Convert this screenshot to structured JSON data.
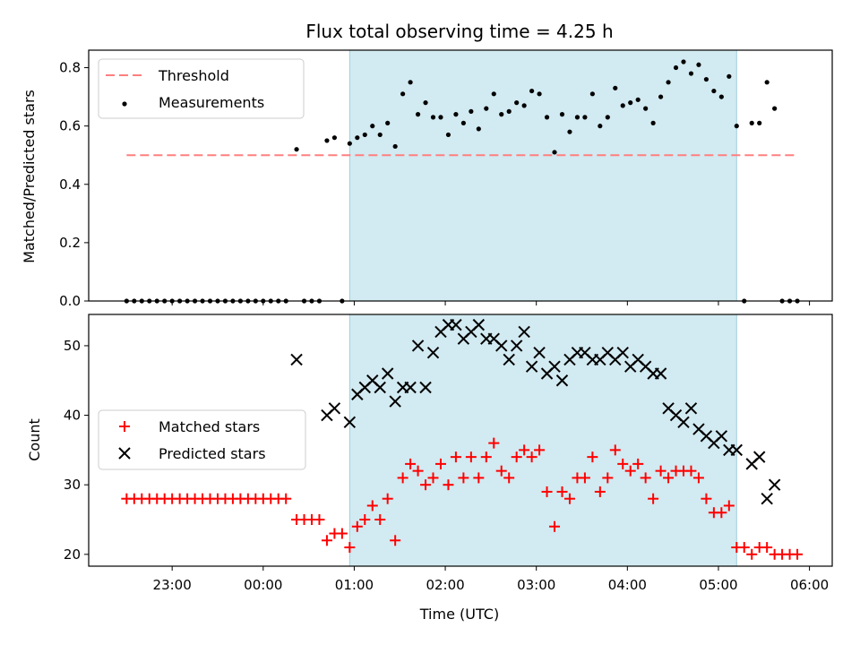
{
  "chart_data": [
    {
      "type": "scatter",
      "title": "Flux total observing time = 4.25 h",
      "xlabel": "",
      "ylabel": "Matched/Predicted stars",
      "ylim": [
        0,
        0.86
      ],
      "yticks": [
        "0.0",
        "0.2",
        "0.4",
        "0.6",
        "0.8"
      ],
      "shaded_span": {
        "start": "00:57",
        "end": "05:12"
      },
      "threshold": {
        "name": "Threshold",
        "value": 0.5,
        "x_start": "22:30",
        "x_end": "05:50"
      },
      "series": [
        {
          "name": "Measurements",
          "points": [
            [
              "22:30",
              0
            ],
            [
              "22:35",
              0
            ],
            [
              "22:40",
              0
            ],
            [
              "22:45",
              0
            ],
            [
              "22:50",
              0
            ],
            [
              "22:55",
              0
            ],
            [
              "23:00",
              0
            ],
            [
              "23:05",
              0
            ],
            [
              "23:10",
              0
            ],
            [
              "23:15",
              0
            ],
            [
              "23:20",
              0
            ],
            [
              "23:25",
              0
            ],
            [
              "23:30",
              0
            ],
            [
              "23:35",
              0
            ],
            [
              "23:40",
              0
            ],
            [
              "23:45",
              0
            ],
            [
              "23:50",
              0
            ],
            [
              "23:55",
              0
            ],
            [
              "00:00",
              0
            ],
            [
              "00:05",
              0
            ],
            [
              "00:10",
              0
            ],
            [
              "00:15",
              0
            ],
            [
              "00:22",
              0.52
            ],
            [
              "00:27",
              0
            ],
            [
              "00:32",
              0
            ],
            [
              "00:37",
              0
            ],
            [
              "00:42",
              0.55
            ],
            [
              "00:47",
              0.56
            ],
            [
              "00:52",
              0
            ],
            [
              "00:57",
              0.54
            ],
            [
              "01:02",
              0.56
            ],
            [
              "01:07",
              0.57
            ],
            [
              "01:12",
              0.6
            ],
            [
              "01:17",
              0.57
            ],
            [
              "01:22",
              0.61
            ],
            [
              "01:27",
              0.53
            ],
            [
              "01:32",
              0.71
            ],
            [
              "01:37",
              0.75
            ],
            [
              "01:42",
              0.64
            ],
            [
              "01:47",
              0.68
            ],
            [
              "01:52",
              0.63
            ],
            [
              "01:57",
              0.63
            ],
            [
              "02:02",
              0.57
            ],
            [
              "02:07",
              0.64
            ],
            [
              "02:12",
              0.61
            ],
            [
              "02:17",
              0.65
            ],
            [
              "02:22",
              0.59
            ],
            [
              "02:27",
              0.66
            ],
            [
              "02:32",
              0.71
            ],
            [
              "02:37",
              0.64
            ],
            [
              "02:42",
              0.65
            ],
            [
              "02:47",
              0.68
            ],
            [
              "02:52",
              0.67
            ],
            [
              "02:57",
              0.72
            ],
            [
              "03:02",
              0.71
            ],
            [
              "03:07",
              0.63
            ],
            [
              "03:12",
              0.51
            ],
            [
              "03:17",
              0.64
            ],
            [
              "03:22",
              0.58
            ],
            [
              "03:27",
              0.63
            ],
            [
              "03:32",
              0.63
            ],
            [
              "03:37",
              0.71
            ],
            [
              "03:42",
              0.6
            ],
            [
              "03:47",
              0.63
            ],
            [
              "03:52",
              0.73
            ],
            [
              "03:57",
              0.67
            ],
            [
              "04:02",
              0.68
            ],
            [
              "04:07",
              0.69
            ],
            [
              "04:12",
              0.66
            ],
            [
              "04:17",
              0.61
            ],
            [
              "04:22",
              0.7
            ],
            [
              "04:27",
              0.75
            ],
            [
              "04:32",
              0.8
            ],
            [
              "04:37",
              0.82
            ],
            [
              "04:42",
              0.78
            ],
            [
              "04:47",
              0.81
            ],
            [
              "04:52",
              0.76
            ],
            [
              "04:57",
              0.72
            ],
            [
              "05:02",
              0.7
            ],
            [
              "05:07",
              0.77
            ],
            [
              "05:12",
              0.6
            ],
            [
              "05:17",
              0
            ],
            [
              "05:22",
              0.61
            ],
            [
              "05:27",
              0.61
            ],
            [
              "05:32",
              0.75
            ],
            [
              "05:37",
              0.66
            ],
            [
              "05:42",
              0
            ],
            [
              "05:47",
              0
            ],
            [
              "05:52",
              0
            ]
          ]
        }
      ],
      "legend": {
        "placement": "upper left",
        "entries": [
          "Threshold",
          "Measurements"
        ]
      }
    },
    {
      "type": "scatter",
      "title": "",
      "xlabel": "Time (UTC)",
      "ylabel": "Count",
      "ylim": [
        18.3,
        54.5
      ],
      "yticks": [
        "20",
        "30",
        "40",
        "50"
      ],
      "xlim": [
        "22:05",
        "06:15"
      ],
      "xticks": [
        "23:00",
        "00:00",
        "01:00",
        "02:00",
        "03:00",
        "04:00",
        "05:00",
        "06:00"
      ],
      "shaded_span": {
        "start": "00:57",
        "end": "05:12"
      },
      "series": [
        {
          "name": "Matched stars",
          "points": [
            [
              "22:30",
              28
            ],
            [
              "22:35",
              28
            ],
            [
              "22:40",
              28
            ],
            [
              "22:45",
              28
            ],
            [
              "22:50",
              28
            ],
            [
              "22:55",
              28
            ],
            [
              "23:00",
              28
            ],
            [
              "23:05",
              28
            ],
            [
              "23:10",
              28
            ],
            [
              "23:15",
              28
            ],
            [
              "23:20",
              28
            ],
            [
              "23:25",
              28
            ],
            [
              "23:30",
              28
            ],
            [
              "23:35",
              28
            ],
            [
              "23:40",
              28
            ],
            [
              "23:45",
              28
            ],
            [
              "23:50",
              28
            ],
            [
              "23:55",
              28
            ],
            [
              "00:00",
              28
            ],
            [
              "00:05",
              28
            ],
            [
              "00:10",
              28
            ],
            [
              "00:15",
              28
            ],
            [
              "00:22",
              25
            ],
            [
              "00:27",
              25
            ],
            [
              "00:32",
              25
            ],
            [
              "00:37",
              25
            ],
            [
              "00:42",
              22
            ],
            [
              "00:47",
              23
            ],
            [
              "00:52",
              23
            ],
            [
              "00:57",
              21
            ],
            [
              "01:02",
              24
            ],
            [
              "01:07",
              25
            ],
            [
              "01:12",
              27
            ],
            [
              "01:17",
              25
            ],
            [
              "01:22",
              28
            ],
            [
              "01:27",
              22
            ],
            [
              "01:32",
              31
            ],
            [
              "01:37",
              33
            ],
            [
              "01:42",
              32
            ],
            [
              "01:47",
              30
            ],
            [
              "01:52",
              31
            ],
            [
              "01:57",
              33
            ],
            [
              "02:02",
              30
            ],
            [
              "02:07",
              34
            ],
            [
              "02:12",
              31
            ],
            [
              "02:17",
              34
            ],
            [
              "02:22",
              31
            ],
            [
              "02:27",
              34
            ],
            [
              "02:32",
              36
            ],
            [
              "02:37",
              32
            ],
            [
              "02:42",
              31
            ],
            [
              "02:47",
              34
            ],
            [
              "02:52",
              35
            ],
            [
              "02:57",
              34
            ],
            [
              "03:02",
              35
            ],
            [
              "03:07",
              29
            ],
            [
              "03:12",
              24
            ],
            [
              "03:17",
              29
            ],
            [
              "03:22",
              28
            ],
            [
              "03:27",
              31
            ],
            [
              "03:32",
              31
            ],
            [
              "03:37",
              34
            ],
            [
              "03:42",
              29
            ],
            [
              "03:47",
              31
            ],
            [
              "03:52",
              35
            ],
            [
              "03:57",
              33
            ],
            [
              "04:02",
              32
            ],
            [
              "04:07",
              33
            ],
            [
              "04:12",
              31
            ],
            [
              "04:17",
              28
            ],
            [
              "04:22",
              32
            ],
            [
              "04:27",
              31
            ],
            [
              "04:32",
              32
            ],
            [
              "04:37",
              32
            ],
            [
              "04:42",
              32
            ],
            [
              "04:47",
              31
            ],
            [
              "04:52",
              28
            ],
            [
              "04:57",
              26
            ],
            [
              "05:02",
              26
            ],
            [
              "05:07",
              27
            ],
            [
              "05:12",
              21
            ],
            [
              "05:17",
              21
            ],
            [
              "05:22",
              20
            ],
            [
              "05:27",
              21
            ],
            [
              "05:32",
              21
            ],
            [
              "05:37",
              20
            ],
            [
              "05:42",
              20
            ],
            [
              "05:47",
              20
            ],
            [
              "05:52",
              20
            ]
          ]
        },
        {
          "name": "Predicted stars",
          "points": [
            [
              "00:22",
              48
            ],
            [
              "00:42",
              40
            ],
            [
              "00:47",
              41
            ],
            [
              "00:57",
              39
            ],
            [
              "01:02",
              43
            ],
            [
              "01:07",
              44
            ],
            [
              "01:12",
              45
            ],
            [
              "01:17",
              44
            ],
            [
              "01:22",
              46
            ],
            [
              "01:27",
              42
            ],
            [
              "01:32",
              44
            ],
            [
              "01:37",
              44
            ],
            [
              "01:42",
              50
            ],
            [
              "01:47",
              44
            ],
            [
              "01:52",
              49
            ],
            [
              "01:57",
              52
            ],
            [
              "02:02",
              53
            ],
            [
              "02:07",
              53
            ],
            [
              "02:12",
              51
            ],
            [
              "02:17",
              52
            ],
            [
              "02:22",
              53
            ],
            [
              "02:27",
              51
            ],
            [
              "02:32",
              51
            ],
            [
              "02:37",
              50
            ],
            [
              "02:42",
              48
            ],
            [
              "02:47",
              50
            ],
            [
              "02:52",
              52
            ],
            [
              "02:57",
              47
            ],
            [
              "03:02",
              49
            ],
            [
              "03:07",
              46
            ],
            [
              "03:12",
              47
            ],
            [
              "03:17",
              45
            ],
            [
              "03:22",
              48
            ],
            [
              "03:27",
              49
            ],
            [
              "03:32",
              49
            ],
            [
              "03:37",
              48
            ],
            [
              "03:42",
              48
            ],
            [
              "03:47",
              49
            ],
            [
              "03:52",
              48
            ],
            [
              "03:57",
              49
            ],
            [
              "04:02",
              47
            ],
            [
              "04:07",
              48
            ],
            [
              "04:12",
              47
            ],
            [
              "04:17",
              46
            ],
            [
              "04:22",
              46
            ],
            [
              "04:27",
              41
            ],
            [
              "04:32",
              40
            ],
            [
              "04:37",
              39
            ],
            [
              "04:42",
              41
            ],
            [
              "04:47",
              38
            ],
            [
              "04:52",
              37
            ],
            [
              "04:57",
              36
            ],
            [
              "05:02",
              37
            ],
            [
              "05:07",
              35
            ],
            [
              "05:12",
              35
            ],
            [
              "05:22",
              33
            ],
            [
              "05:27",
              34
            ],
            [
              "05:32",
              28
            ],
            [
              "05:37",
              30
            ]
          ]
        }
      ],
      "legend": {
        "placement": "center left",
        "entries": [
          "Matched stars",
          "Predicted stars"
        ]
      }
    }
  ],
  "colors": {
    "shade": "#add8e6",
    "threshold": "#ff7f7f",
    "measurements": "#000000",
    "matched": "#ff0000",
    "predicted": "#000000"
  }
}
